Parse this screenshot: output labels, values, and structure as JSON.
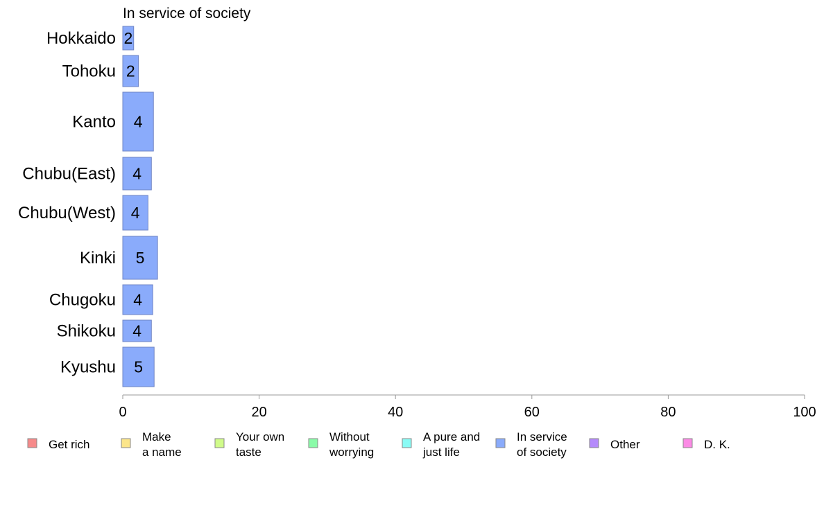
{
  "chart_data": {
    "type": "bar",
    "orientation": "horizontal",
    "title": "In service of society",
    "categories": [
      "Hokkaido",
      "Tohoku",
      "Kanto",
      "Chubu(East)",
      "Chubu(West)",
      "Kinki",
      "Chugoku",
      "Shikoku",
      "Kyushu"
    ],
    "series": [
      {
        "name": "In service of society",
        "color": "#8aabfb",
        "values": [
          1.6,
          2.3,
          4.5,
          4.2,
          3.7,
          5.1,
          4.4,
          4.2,
          4.6
        ],
        "labels": [
          "2",
          "2",
          "4",
          "4",
          "4",
          "5",
          "4",
          "4",
          "5"
        ]
      }
    ],
    "xlim": [
      0,
      100
    ],
    "xticks": [
      "0",
      "20",
      "40",
      "60",
      "80",
      "100"
    ],
    "grid": false,
    "legend_position": "bottom",
    "legend": [
      {
        "lines": [
          "Get rich"
        ],
        "color": "#f68a8a"
      },
      {
        "lines": [
          "Make",
          "a name"
        ],
        "color": "#fbe58a"
      },
      {
        "lines": [
          "Your own",
          "taste"
        ],
        "color": "#d0fb8a"
      },
      {
        "lines": [
          "Without",
          "worrying"
        ],
        "color": "#8afba8"
      },
      {
        "lines": [
          "A pure and",
          "just life"
        ],
        "color": "#8afbf5"
      },
      {
        "lines": [
          "In service",
          "of society"
        ],
        "color": "#8aabfb"
      },
      {
        "lines": [
          "Other"
        ],
        "color": "#b58afb"
      },
      {
        "lines": [
          "D. K."
        ],
        "color": "#fb8ae5"
      }
    ]
  }
}
